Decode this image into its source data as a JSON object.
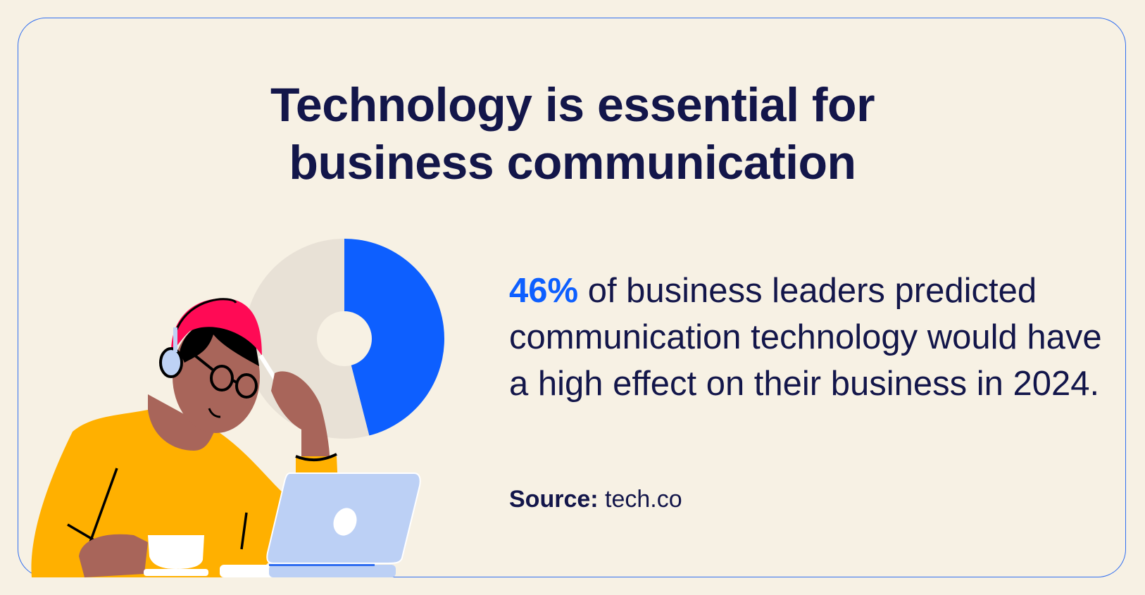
{
  "title": {
    "line1": "Technology is essential for",
    "line2": "business communication"
  },
  "stat": {
    "highlight": "46%",
    "text": " of business leaders predicted communication technology would have a high effect on their business in 2024."
  },
  "source": {
    "label": "Source:",
    "value": " tech.co"
  },
  "colors": {
    "background": "#f7f1e4",
    "accent": "#0d5fff",
    "text": "#13164a",
    "pie_rest": "#e8e1d6"
  },
  "chart_data": {
    "type": "pie",
    "values": [
      46,
      54
    ],
    "highlight_index": 0,
    "colors": [
      "#0d5fff",
      "#e8e1d6"
    ]
  }
}
